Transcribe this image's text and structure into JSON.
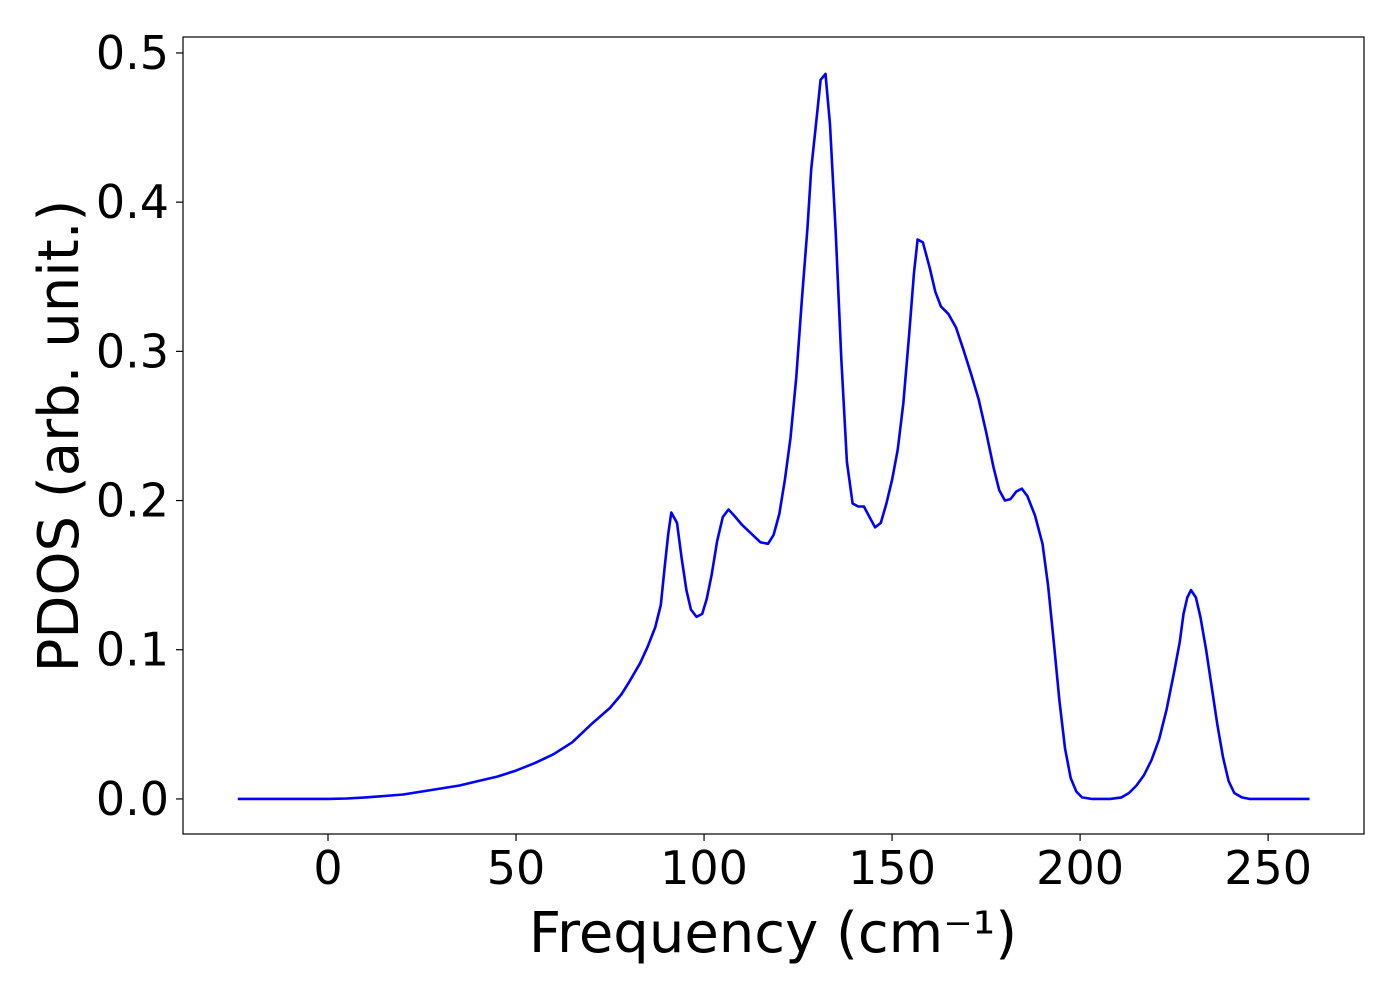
{
  "chart_data": {
    "type": "line",
    "xlabel": "Frequency (cm⁻¹)",
    "ylabel": "PDOS (arb. unit.)",
    "color": "#0000ff",
    "x": [
      -24,
      0,
      5,
      10,
      15,
      20,
      25,
      30,
      35,
      40,
      45,
      50,
      55,
      60,
      65,
      70,
      75,
      78,
      80,
      83,
      85,
      87,
      88.5,
      89.5,
      90.5,
      91.3,
      92.8,
      94,
      95.3,
      96.5,
      98,
      99.5,
      100.7,
      102,
      103.5,
      105,
      106.5,
      108,
      110,
      112.5,
      115,
      117,
      118.5,
      120,
      121.5,
      123,
      124.5,
      126,
      127.5,
      128.5,
      130,
      131,
      132.3,
      133.5,
      135,
      136.5,
      138,
      139.5,
      141,
      142.5,
      144,
      145.5,
      147,
      148.5,
      150,
      151.5,
      153,
      154.5,
      155.8,
      156.8,
      158.2,
      160,
      161.5,
      163,
      165,
      167,
      169,
      171,
      173,
      175,
      177,
      178.5,
      180,
      181.5,
      183,
      184.5,
      186,
      188,
      190,
      191.5,
      193,
      194.5,
      196,
      197.5,
      199,
      200.5,
      203,
      208,
      211,
      213,
      215,
      217,
      219,
      221,
      223,
      225,
      226.5,
      227.5,
      228.5,
      229.5,
      230.8,
      232,
      233.5,
      235,
      236.5,
      238,
      239.5,
      241,
      243,
      245,
      261
    ],
    "values": [
      0,
      0,
      0.0003,
      0.001,
      0.002,
      0.003,
      0.005,
      0.007,
      0.009,
      0.012,
      0.015,
      0.019,
      0.024,
      0.03,
      0.038,
      0.05,
      0.061,
      0.07,
      0.078,
      0.091,
      0.102,
      0.115,
      0.13,
      0.155,
      0.178,
      0.192,
      0.185,
      0.162,
      0.14,
      0.127,
      0.122,
      0.124,
      0.134,
      0.15,
      0.173,
      0.189,
      0.194,
      0.19,
      0.184,
      0.178,
      0.172,
      0.171,
      0.177,
      0.191,
      0.214,
      0.242,
      0.282,
      0.334,
      0.383,
      0.422,
      0.458,
      0.482,
      0.486,
      0.452,
      0.38,
      0.295,
      0.226,
      0.198,
      0.196,
      0.196,
      0.189,
      0.182,
      0.185,
      0.198,
      0.214,
      0.234,
      0.265,
      0.31,
      0.352,
      0.375,
      0.373,
      0.356,
      0.34,
      0.33,
      0.325,
      0.316,
      0.301,
      0.285,
      0.268,
      0.246,
      0.222,
      0.207,
      0.2,
      0.201,
      0.206,
      0.208,
      0.203,
      0.19,
      0.171,
      0.143,
      0.105,
      0.066,
      0.034,
      0.014,
      0.005,
      0.001,
      0,
      0,
      0.001,
      0.004,
      0.009,
      0.016,
      0.026,
      0.04,
      0.06,
      0.085,
      0.105,
      0.124,
      0.135,
      0.14,
      0.135,
      0.122,
      0.1,
      0.075,
      0.05,
      0.028,
      0.012,
      0.004,
      0.001,
      0,
      0
    ],
    "xlim": [
      -38.56,
      275.5
    ],
    "ylim": [
      -0.0235,
      0.5107
    ],
    "xticks": [
      0,
      50,
      100,
      150,
      200,
      250
    ],
    "yticks": [
      {
        "value": 0,
        "label": "0.0"
      },
      0.1,
      0.2,
      0.3,
      0.4,
      0.5
    ]
  }
}
